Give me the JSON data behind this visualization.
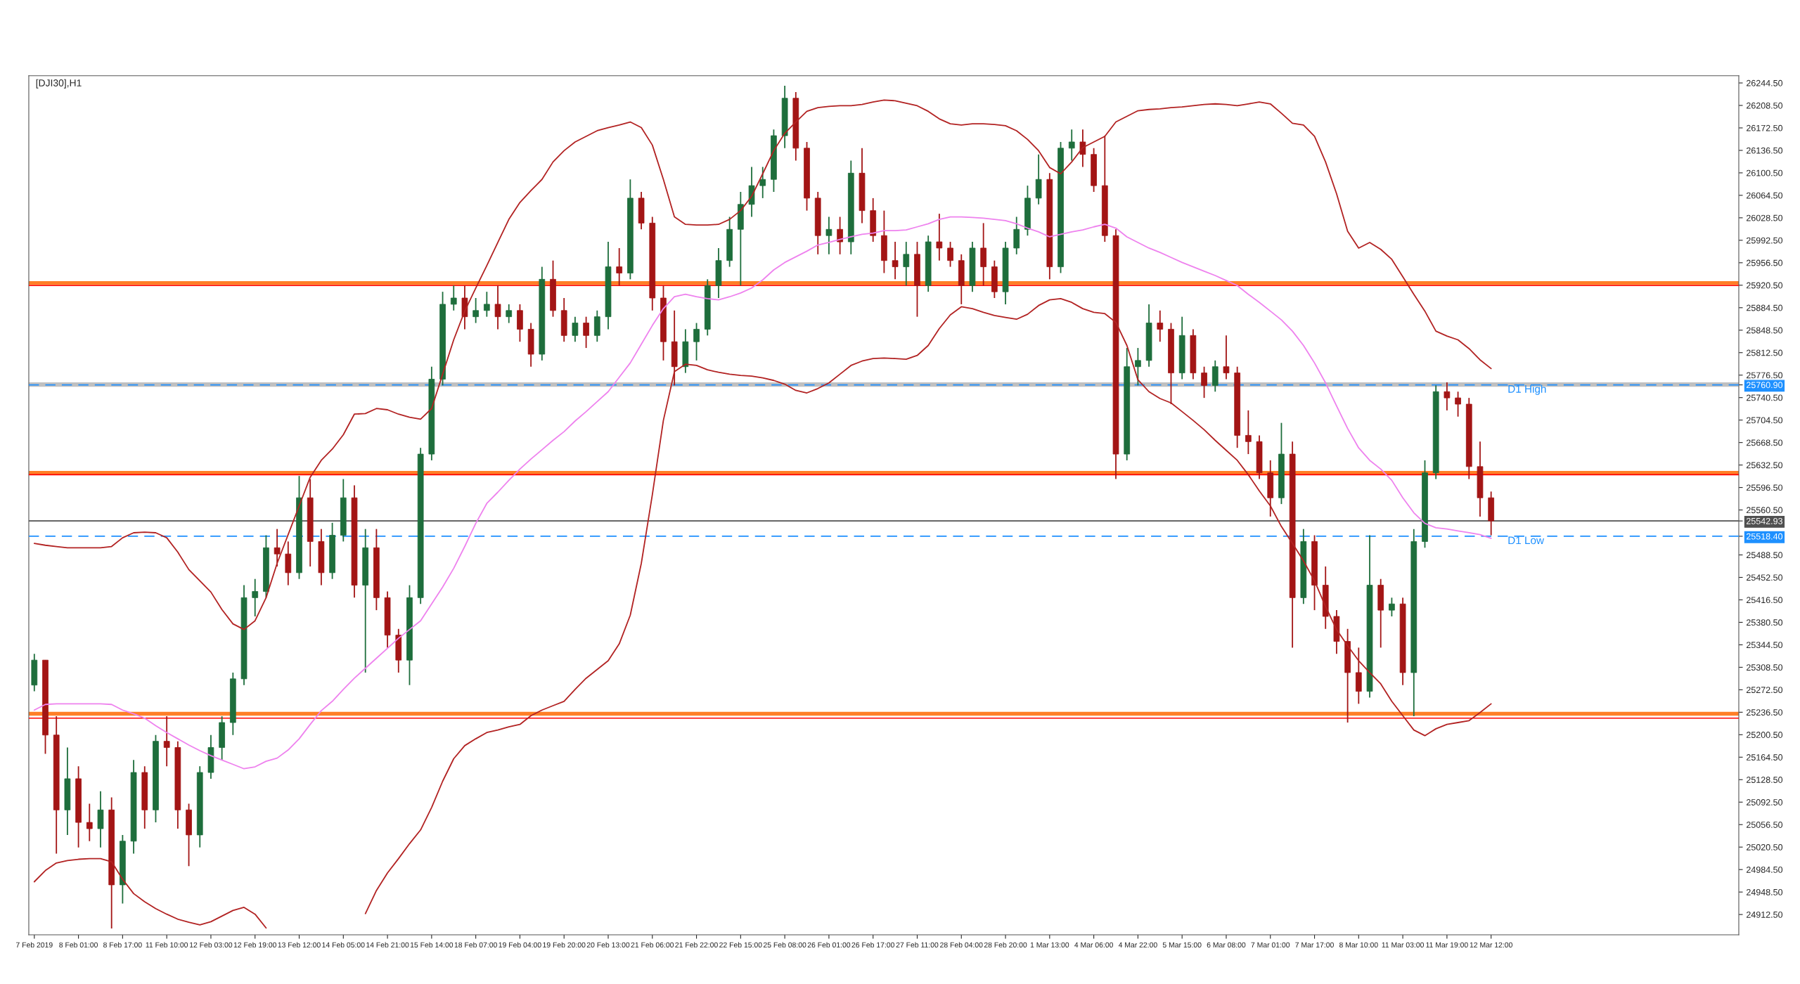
{
  "chart_data": {
    "type": "candlestick",
    "title": "[DJI30],H1",
    "categories": [
      "7 Feb 2019",
      null,
      null,
      null,
      "8 Feb 01:00",
      null,
      null,
      null,
      "8 Feb 17:00",
      null,
      null,
      null,
      "11 Feb 10:00",
      null,
      null,
      null,
      "12 Feb 03:00",
      null,
      null,
      null,
      "12 Feb 19:00",
      null,
      null,
      null,
      "13 Feb 12:00",
      null,
      null,
      null,
      "14 Feb 05:00",
      null,
      null,
      null,
      "14 Feb 21:00",
      null,
      null,
      null,
      "15 Feb 14:00",
      null,
      null,
      null,
      "18 Feb 07:00",
      null,
      null,
      null,
      "19 Feb 04:00",
      null,
      null,
      null,
      "19 Feb 20:00",
      null,
      null,
      null,
      "20 Feb 13:00",
      null,
      null,
      null,
      "21 Feb 06:00",
      null,
      null,
      null,
      "21 Feb 22:00",
      null,
      null,
      null,
      "22 Feb 15:00",
      null,
      null,
      null,
      "25 Feb 08:00",
      null,
      null,
      null,
      "26 Feb 01:00",
      null,
      null,
      null,
      "26 Feb 17:00",
      null,
      null,
      null,
      "27 Feb 11:00",
      null,
      null,
      null,
      "28 Feb 04:00",
      null,
      null,
      null,
      "28 Feb 20:00",
      null,
      null,
      null,
      "1 Mar 13:00",
      null,
      null,
      null,
      "4 Mar 06:00",
      null,
      null,
      null,
      "4 Mar 22:00",
      null,
      null,
      null,
      "5 Mar 15:00",
      null,
      null,
      null,
      "6 Mar 08:00",
      null,
      null,
      null,
      "7 Mar 01:00",
      null,
      null,
      null,
      "7 Mar 17:00",
      null,
      null,
      null,
      "8 Mar 10:00",
      null,
      null,
      null,
      "11 Mar 03:00",
      null,
      null,
      null,
      "11 Mar 19:00",
      null,
      null,
      null,
      "12 Mar 12:00"
    ],
    "ohlc": [
      [
        25280,
        25330,
        25270,
        25320
      ],
      [
        25320,
        25320,
        25170,
        25200
      ],
      [
        25200,
        25230,
        25010,
        25080
      ],
      [
        25080,
        25180,
        25040,
        25130
      ],
      [
        25130,
        25150,
        25020,
        25060
      ],
      [
        25060,
        25090,
        25030,
        25050
      ],
      [
        25050,
        25110,
        25020,
        25080
      ],
      [
        25080,
        25100,
        24890,
        24960
      ],
      [
        24960,
        25040,
        24930,
        25030
      ],
      [
        25030,
        25160,
        25010,
        25140
      ],
      [
        25140,
        25150,
        25050,
        25080
      ],
      [
        25080,
        25200,
        25060,
        25190
      ],
      [
        25190,
        25230,
        25150,
        25180
      ],
      [
        25180,
        25190,
        25050,
        25080
      ],
      [
        25080,
        25090,
        24990,
        25040
      ],
      [
        25040,
        25150,
        25020,
        25140
      ],
      [
        25140,
        25200,
        25130,
        25180
      ],
      [
        25180,
        25230,
        25160,
        25220
      ],
      [
        25220,
        25300,
        25200,
        25290
      ],
      [
        25290,
        25440,
        25280,
        25420
      ],
      [
        25420,
        25450,
        25390,
        25430
      ],
      [
        25430,
        25520,
        25420,
        25500
      ],
      [
        25500,
        25530,
        25470,
        25490
      ],
      [
        25490,
        25510,
        25440,
        25460
      ],
      [
        25460,
        25615,
        25450,
        25580
      ],
      [
        25580,
        25610,
        25470,
        25510
      ],
      [
        25510,
        25530,
        25440,
        25460
      ],
      [
        25460,
        25540,
        25450,
        25520
      ],
      [
        25520,
        25610,
        25510,
        25580
      ],
      [
        25580,
        25600,
        25420,
        25440
      ],
      [
        25440,
        25530,
        25300,
        25500
      ],
      [
        25500,
        25530,
        25400,
        25420
      ],
      [
        25420,
        25430,
        25340,
        25360
      ],
      [
        25360,
        25370,
        25300,
        25320
      ],
      [
        25320,
        25440,
        25280,
        25420
      ],
      [
        25420,
        25660,
        25410,
        25650
      ],
      [
        25650,
        25790,
        25640,
        25770
      ],
      [
        25770,
        25910,
        25760,
        25890
      ],
      [
        25890,
        25920,
        25880,
        25900
      ],
      [
        25900,
        25920,
        25850,
        25870
      ],
      [
        25870,
        25900,
        25860,
        25880
      ],
      [
        25880,
        25910,
        25870,
        25890
      ],
      [
        25890,
        25920,
        25850,
        25870
      ],
      [
        25870,
        25890,
        25860,
        25880
      ],
      [
        25880,
        25890,
        25830,
        25850
      ],
      [
        25850,
        25860,
        25790,
        25810
      ],
      [
        25810,
        25950,
        25800,
        25930
      ],
      [
        25930,
        25960,
        25870,
        25880
      ],
      [
        25880,
        25900,
        25830,
        25840
      ],
      [
        25840,
        25870,
        25830,
        25860
      ],
      [
        25860,
        25870,
        25820,
        25840
      ],
      [
        25840,
        25880,
        25830,
        25870
      ],
      [
        25870,
        25990,
        25850,
        25950
      ],
      [
        25950,
        25980,
        25920,
        25940
      ],
      [
        25940,
        26090,
        25930,
        26060
      ],
      [
        26060,
        26070,
        26010,
        26020
      ],
      [
        26020,
        26030,
        25880,
        25900
      ],
      [
        25900,
        25920,
        25800,
        25830
      ],
      [
        25830,
        25880,
        25760,
        25790
      ],
      [
        25790,
        25850,
        25780,
        25830
      ],
      [
        25830,
        25860,
        25800,
        25850
      ],
      [
        25850,
        25930,
        25840,
        25920
      ],
      [
        25920,
        25980,
        25900,
        25960
      ],
      [
        25960,
        26030,
        25950,
        26010
      ],
      [
        26010,
        26070,
        25920,
        26050
      ],
      [
        26050,
        26110,
        26030,
        26080
      ],
      [
        26080,
        26110,
        26060,
        26090
      ],
      [
        26090,
        26170,
        26070,
        26160
      ],
      [
        26160,
        26240,
        26140,
        26220
      ],
      [
        26220,
        26230,
        26120,
        26140
      ],
      [
        26140,
        26150,
        26040,
        26060
      ],
      [
        26060,
        26070,
        25970,
        26000
      ],
      [
        26000,
        26030,
        25970,
        26010
      ],
      [
        26010,
        26030,
        25970,
        25990
      ],
      [
        25990,
        26120,
        25970,
        26100
      ],
      [
        26100,
        26140,
        26020,
        26040
      ],
      [
        26040,
        26060,
        25990,
        26000
      ],
      [
        26000,
        26040,
        25940,
        25960
      ],
      [
        25960,
        25990,
        25930,
        25950
      ],
      [
        25950,
        25990,
        25920,
        25970
      ],
      [
        25970,
        25990,
        25870,
        25920
      ],
      [
        25920,
        26000,
        25910,
        25990
      ],
      [
        25990,
        26035,
        25960,
        25980
      ],
      [
        25980,
        25990,
        25950,
        25960
      ],
      [
        25960,
        25970,
        25890,
        25920
      ],
      [
        25920,
        25990,
        25910,
        25980
      ],
      [
        25980,
        26020,
        25920,
        25950
      ],
      [
        25950,
        25960,
        25900,
        25910
      ],
      [
        25910,
        25990,
        25890,
        25980
      ],
      [
        25980,
        26030,
        25970,
        26010
      ],
      [
        26010,
        26080,
        26000,
        26060
      ],
      [
        26060,
        26130,
        26050,
        26090
      ],
      [
        26090,
        26100,
        25930,
        25950
      ],
      [
        25950,
        26150,
        25940,
        26140
      ],
      [
        26140,
        26170,
        26120,
        26150
      ],
      [
        26150,
        26170,
        26110,
        26130
      ],
      [
        26130,
        26140,
        26070,
        26080
      ],
      [
        26080,
        26160,
        25990,
        26000
      ],
      [
        26000,
        26010,
        25610,
        25650
      ],
      [
        25650,
        25820,
        25640,
        25790
      ],
      [
        25790,
        25820,
        25760,
        25800
      ],
      [
        25800,
        25890,
        25790,
        25860
      ],
      [
        25860,
        25880,
        25830,
        25850
      ],
      [
        25850,
        25860,
        25730,
        25780
      ],
      [
        25780,
        25870,
        25770,
        25840
      ],
      [
        25840,
        25850,
        25770,
        25780
      ],
      [
        25780,
        25790,
        25740,
        25760
      ],
      [
        25760,
        25800,
        25750,
        25790
      ],
      [
        25790,
        25840,
        25770,
        25780
      ],
      [
        25780,
        25790,
        25660,
        25680
      ],
      [
        25680,
        25720,
        25650,
        25670
      ],
      [
        25670,
        25680,
        25610,
        25620
      ],
      [
        25620,
        25640,
        25550,
        25580
      ],
      [
        25580,
        25700,
        25570,
        25650
      ],
      [
        25650,
        25670,
        25340,
        25420
      ],
      [
        25420,
        25530,
        25410,
        25510
      ],
      [
        25510,
        25520,
        25400,
        25440
      ],
      [
        25440,
        25470,
        25370,
        25390
      ],
      [
        25390,
        25400,
        25330,
        25350
      ],
      [
        25350,
        25370,
        25220,
        25300
      ],
      [
        25300,
        25340,
        25250,
        25270
      ],
      [
        25270,
        25520,
        25260,
        25440
      ],
      [
        25440,
        25450,
        25340,
        25400
      ],
      [
        25400,
        25420,
        25390,
        25410
      ],
      [
        25410,
        25420,
        25280,
        25300
      ],
      [
        25300,
        25530,
        25230,
        25510
      ],
      [
        25510,
        25640,
        25500,
        25620
      ],
      [
        25620,
        25760,
        25610,
        25750
      ],
      [
        25750,
        25765,
        25720,
        25740
      ],
      [
        25740,
        25750,
        25710,
        25730
      ],
      [
        25730,
        25740,
        25610,
        25630
      ],
      [
        25630,
        25670,
        25550,
        25580
      ],
      [
        25580,
        25590,
        25520,
        25543
      ]
    ],
    "series": [
      {
        "type": "line",
        "color": "#b22222",
        "values": [
          25507,
          25504,
          25502,
          25500,
          25500,
          25500,
          25500,
          25502,
          25516,
          25524,
          25525,
          25524,
          25516,
          25493,
          25465,
          25447,
          25429,
          25401,
          25378,
          25369,
          25383,
          25420,
          25475,
          25521,
          25567,
          25613,
          25640,
          25658,
          25681,
          25714,
          25715,
          25723,
          25721,
          25714,
          25709,
          25706,
          25723,
          25778,
          25833,
          25879,
          25916,
          25952,
          25989,
          26026,
          26053,
          26072,
          26090,
          26118,
          26136,
          26150,
          26159,
          26168,
          26173,
          26177,
          26182,
          26173,
          26145,
          26090,
          26030,
          26018,
          26017,
          26017,
          26018,
          26026,
          26040,
          26063,
          26099,
          26136,
          26164,
          26182,
          26199,
          26205,
          26207,
          26208,
          26208,
          26210,
          26214,
          26217,
          26216,
          26212,
          26208,
          26199,
          26187,
          26179,
          26177,
          26179,
          26179,
          26178,
          26176,
          26168,
          26154,
          26136,
          26109,
          26099,
          26118,
          26141,
          26150,
          26159,
          26182,
          26191,
          26200,
          26202,
          26203,
          26205,
          26206,
          26208,
          26210,
          26211,
          26210,
          26208,
          26211,
          26214,
          26211,
          26196,
          26180,
          26177,
          26159,
          26118,
          26067,
          26007,
          25980,
          25989,
          25978,
          25962,
          25934,
          25906,
          25879,
          25847,
          25839,
          25833,
          25819,
          25801,
          25787
        ]
      },
      {
        "type": "line",
        "color": "#ee82ee",
        "values": [
          25240,
          25249,
          25250,
          25250,
          25250,
          25250,
          25250,
          25249,
          25240,
          25234,
          25227,
          25215,
          25204,
          25194,
          25184,
          25175,
          25167,
          25160,
          25153,
          25146,
          25149,
          25158,
          25163,
          25176,
          25194,
          25217,
          25239,
          25254,
          25273,
          25291,
          25307,
          25323,
          25339,
          25355,
          25369,
          25383,
          25410,
          25437,
          25467,
          25502,
          25539,
          25571,
          25589,
          25608,
          25626,
          25642,
          25657,
          25672,
          25686,
          25703,
          25718,
          25734,
          25750,
          25773,
          25796,
          25826,
          25856,
          25883,
          25902,
          25906,
          25902,
          25899,
          25897,
          25902,
          25908,
          25916,
          25929,
          25945,
          25957,
          25966,
          25975,
          25985,
          25989,
          25994,
          25998,
          26002,
          26004,
          26008,
          26008,
          26009,
          26014,
          26019,
          26026,
          26030,
          26030,
          26029,
          26028,
          26026,
          26024,
          26019,
          26012,
          26006,
          25998,
          26002,
          26006,
          26009,
          26014,
          26018,
          26012,
          25998,
          25989,
          25980,
          25973,
          25965,
          25957,
          25950,
          25943,
          25936,
          25928,
          25920,
          25906,
          25893,
          25879,
          25865,
          25847,
          25824,
          25796,
          25764,
          25727,
          25691,
          25660,
          25640,
          25626,
          25608,
          25580,
          25556,
          25539,
          25532,
          25530,
          25527,
          25524,
          25521,
          25515
        ]
      },
      {
        "type": "line",
        "color": "#b22222",
        "values": [
          24965,
          24983,
          24995,
          24999,
          25001,
          25002,
          25002,
          24997,
          24969,
          24946,
          24933,
          24922,
          24913,
          24905,
          24900,
          24896,
          24901,
          24910,
          24919,
          24924,
          24913,
          24891,
          null,
          null,
          null,
          null,
          null,
          null,
          null,
          null,
          24914,
          24951,
          24979,
          25002,
          25026,
          25048,
          25084,
          25126,
          25162,
          25183,
          25194,
          25204,
          25208,
          25213,
          25217,
          25231,
          25240,
          25247,
          25254,
          25273,
          25291,
          25305,
          25319,
          25346,
          25392,
          25475,
          25585,
          25704,
          25782,
          25794,
          25792,
          25785,
          25781,
          25778,
          25776,
          25775,
          25772,
          25768,
          25762,
          25752,
          25748,
          25755,
          25764,
          25778,
          25792,
          25799,
          25803,
          25804,
          25803,
          25802,
          25808,
          25824,
          25851,
          25873,
          25886,
          25883,
          25877,
          25872,
          25869,
          25866,
          25874,
          25888,
          25897,
          25899,
          25893,
          25883,
          25877,
          25875,
          25861,
          25824,
          25769,
          25750,
          25739,
          25732,
          25718,
          25704,
          25689,
          25672,
          25656,
          25640,
          25617,
          25591,
          25567,
          25534,
          25507,
          25479,
          25447,
          25406,
          25369,
          25343,
          25319,
          25300,
          25282,
          25254,
          25231,
          25208,
          25199,
          25210,
          25217,
          25220,
          25223,
          25236,
          25250
        ]
      }
    ],
    "ylim": [
      24880,
      26256
    ],
    "yticks": [
      {
        "value": 24912.5,
        "label": "24912.50"
      },
      {
        "value": 24948.5,
        "label": "24948.50"
      },
      {
        "value": 24984.5,
        "label": "24984.50"
      },
      {
        "value": 25020.5,
        "label": "25020.50"
      },
      {
        "value": 25056.5,
        "label": "25056.50"
      },
      {
        "value": 25092.5,
        "label": "25092.50"
      },
      {
        "value": 25128.5,
        "label": "25128.50"
      },
      {
        "value": 25164.5,
        "label": "25164.50"
      },
      {
        "value": 25200.5,
        "label": "25200.50"
      },
      {
        "value": 25236.5,
        "label": "25236.50"
      },
      {
        "value": 25272.5,
        "label": "25272.50"
      },
      {
        "value": 25308.5,
        "label": "25308.50"
      },
      {
        "value": 25344.5,
        "label": "25344.50"
      },
      {
        "value": 25380.5,
        "label": "25380.50"
      },
      {
        "value": 25416.5,
        "label": "25416.50"
      },
      {
        "value": 25452.5,
        "label": "25452.50"
      },
      {
        "value": 25488.5,
        "label": "25488.50"
      },
      {
        "value": 25518.4,
        "label": "25518.40"
      },
      {
        "value": 25542.93,
        "label": "25542.93"
      },
      {
        "value": 25560.5,
        "label": "25560.50"
      },
      {
        "value": 25596.5,
        "label": "25596.50"
      },
      {
        "value": 25632.5,
        "label": "25632.50"
      },
      {
        "value": 25668.5,
        "label": "25668.50"
      },
      {
        "value": 25704.5,
        "label": "25704.50"
      },
      {
        "value": 25740.5,
        "label": "25740.50"
      },
      {
        "value": 25760.9,
        "label": "25760.90"
      },
      {
        "value": 25776.5,
        "label": "25776.50"
      },
      {
        "value": 25812.5,
        "label": "25812.50"
      },
      {
        "value": 25848.5,
        "label": "25848.50"
      },
      {
        "value": 25884.5,
        "label": "25884.50"
      },
      {
        "value": 25920.5,
        "label": "25920.50"
      },
      {
        "value": 25956.5,
        "label": "25956.50"
      },
      {
        "value": 25992.5,
        "label": "25992.50"
      },
      {
        "value": 26028.5,
        "label": "26028.50"
      },
      {
        "value": 26064.5,
        "label": "26064.50"
      },
      {
        "value": 26100.5,
        "label": "26100.50"
      },
      {
        "value": 26136.5,
        "label": "26136.50"
      },
      {
        "value": 26172.5,
        "label": "26172.50"
      },
      {
        "value": 26208.5,
        "label": "26208.50"
      },
      {
        "value": 26244.5,
        "label": "26244.50"
      }
    ],
    "ref_lines": [
      {
        "axis": "y",
        "value": 25920,
        "color": "#ff0000"
      },
      {
        "axis": "y",
        "value": 25924,
        "color": "#ff7f27",
        "line_style": "solid"
      },
      {
        "axis": "y",
        "value": 25617,
        "color": "#ff0000"
      },
      {
        "axis": "y",
        "value": 25620,
        "color": "#ff7f27",
        "line_style": "solid"
      },
      {
        "axis": "y",
        "value": 25227,
        "color": "#ff0000"
      },
      {
        "axis": "y",
        "value": 25234,
        "color": "#ff7f27",
        "line_style": "solid"
      },
      {
        "axis": "y",
        "value": 25760.9,
        "color": "#1e90ff",
        "line_style": "dashed",
        "label": "D1 High"
      },
      {
        "axis": "y",
        "value": 25518.4,
        "color": "#1e90ff",
        "line_style": "dashed",
        "label": "D1 Low"
      },
      {
        "axis": "y",
        "value": 25542.93,
        "color": "#505050"
      }
    ],
    "bands": [
      {
        "axis": "y",
        "from": 25758,
        "to": 25765,
        "color": "#c0c0c0"
      }
    ],
    "grid": false
  }
}
